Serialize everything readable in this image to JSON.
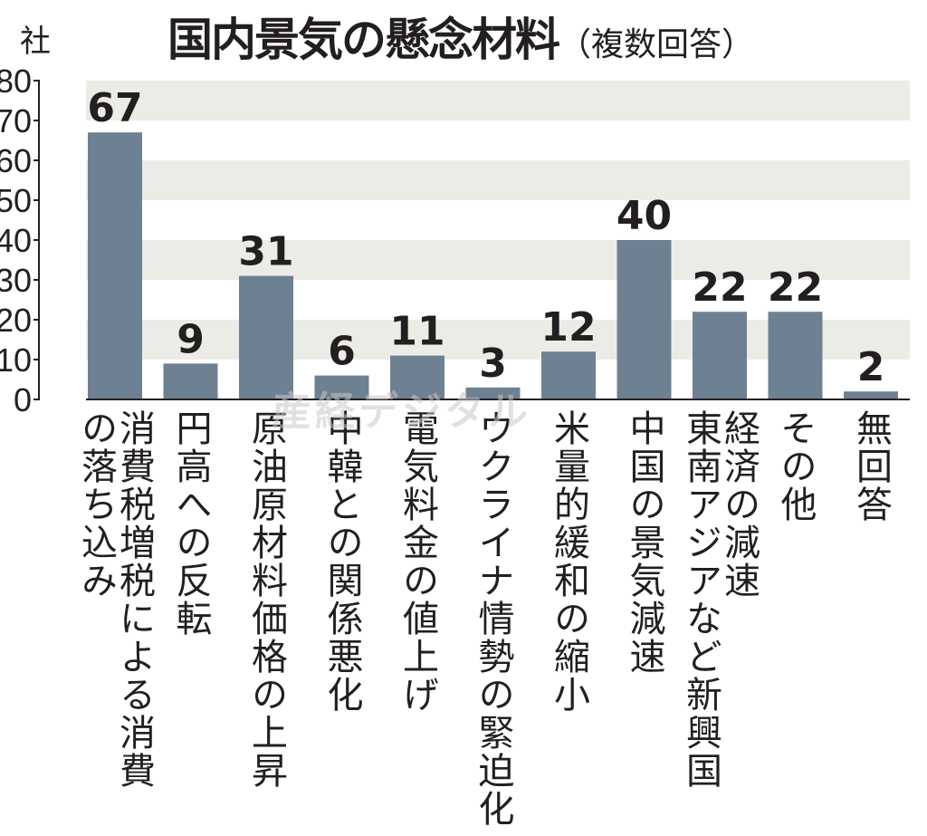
{
  "chart_data": {
    "type": "bar",
    "title": "国内景気の懸念材料",
    "subtitle": "（複数回答）",
    "ylabel": "社",
    "ylim": [
      0,
      80
    ],
    "yticks": [
      0,
      10,
      20,
      30,
      40,
      50,
      60,
      70,
      80
    ],
    "grid": "alternating horizontal bands",
    "categories": [
      "消費税増税による消費\nの落ち込み",
      "円高への反転",
      "原油原材料価格の上昇",
      "中韓との関係悪化",
      "電気料金の値上げ",
      "ウクライナ情勢の緊迫化",
      "米量的緩和の縮小",
      "中国の景気減速",
      "経済の減速\n東南アジアなど新興国",
      "その他",
      "無回答"
    ],
    "values": [
      67,
      9,
      31,
      6,
      11,
      3,
      12,
      40,
      22,
      22,
      2
    ],
    "bar_color": "#6e8192",
    "band_color": "#ecece6"
  },
  "watermark": "産経デジタル"
}
